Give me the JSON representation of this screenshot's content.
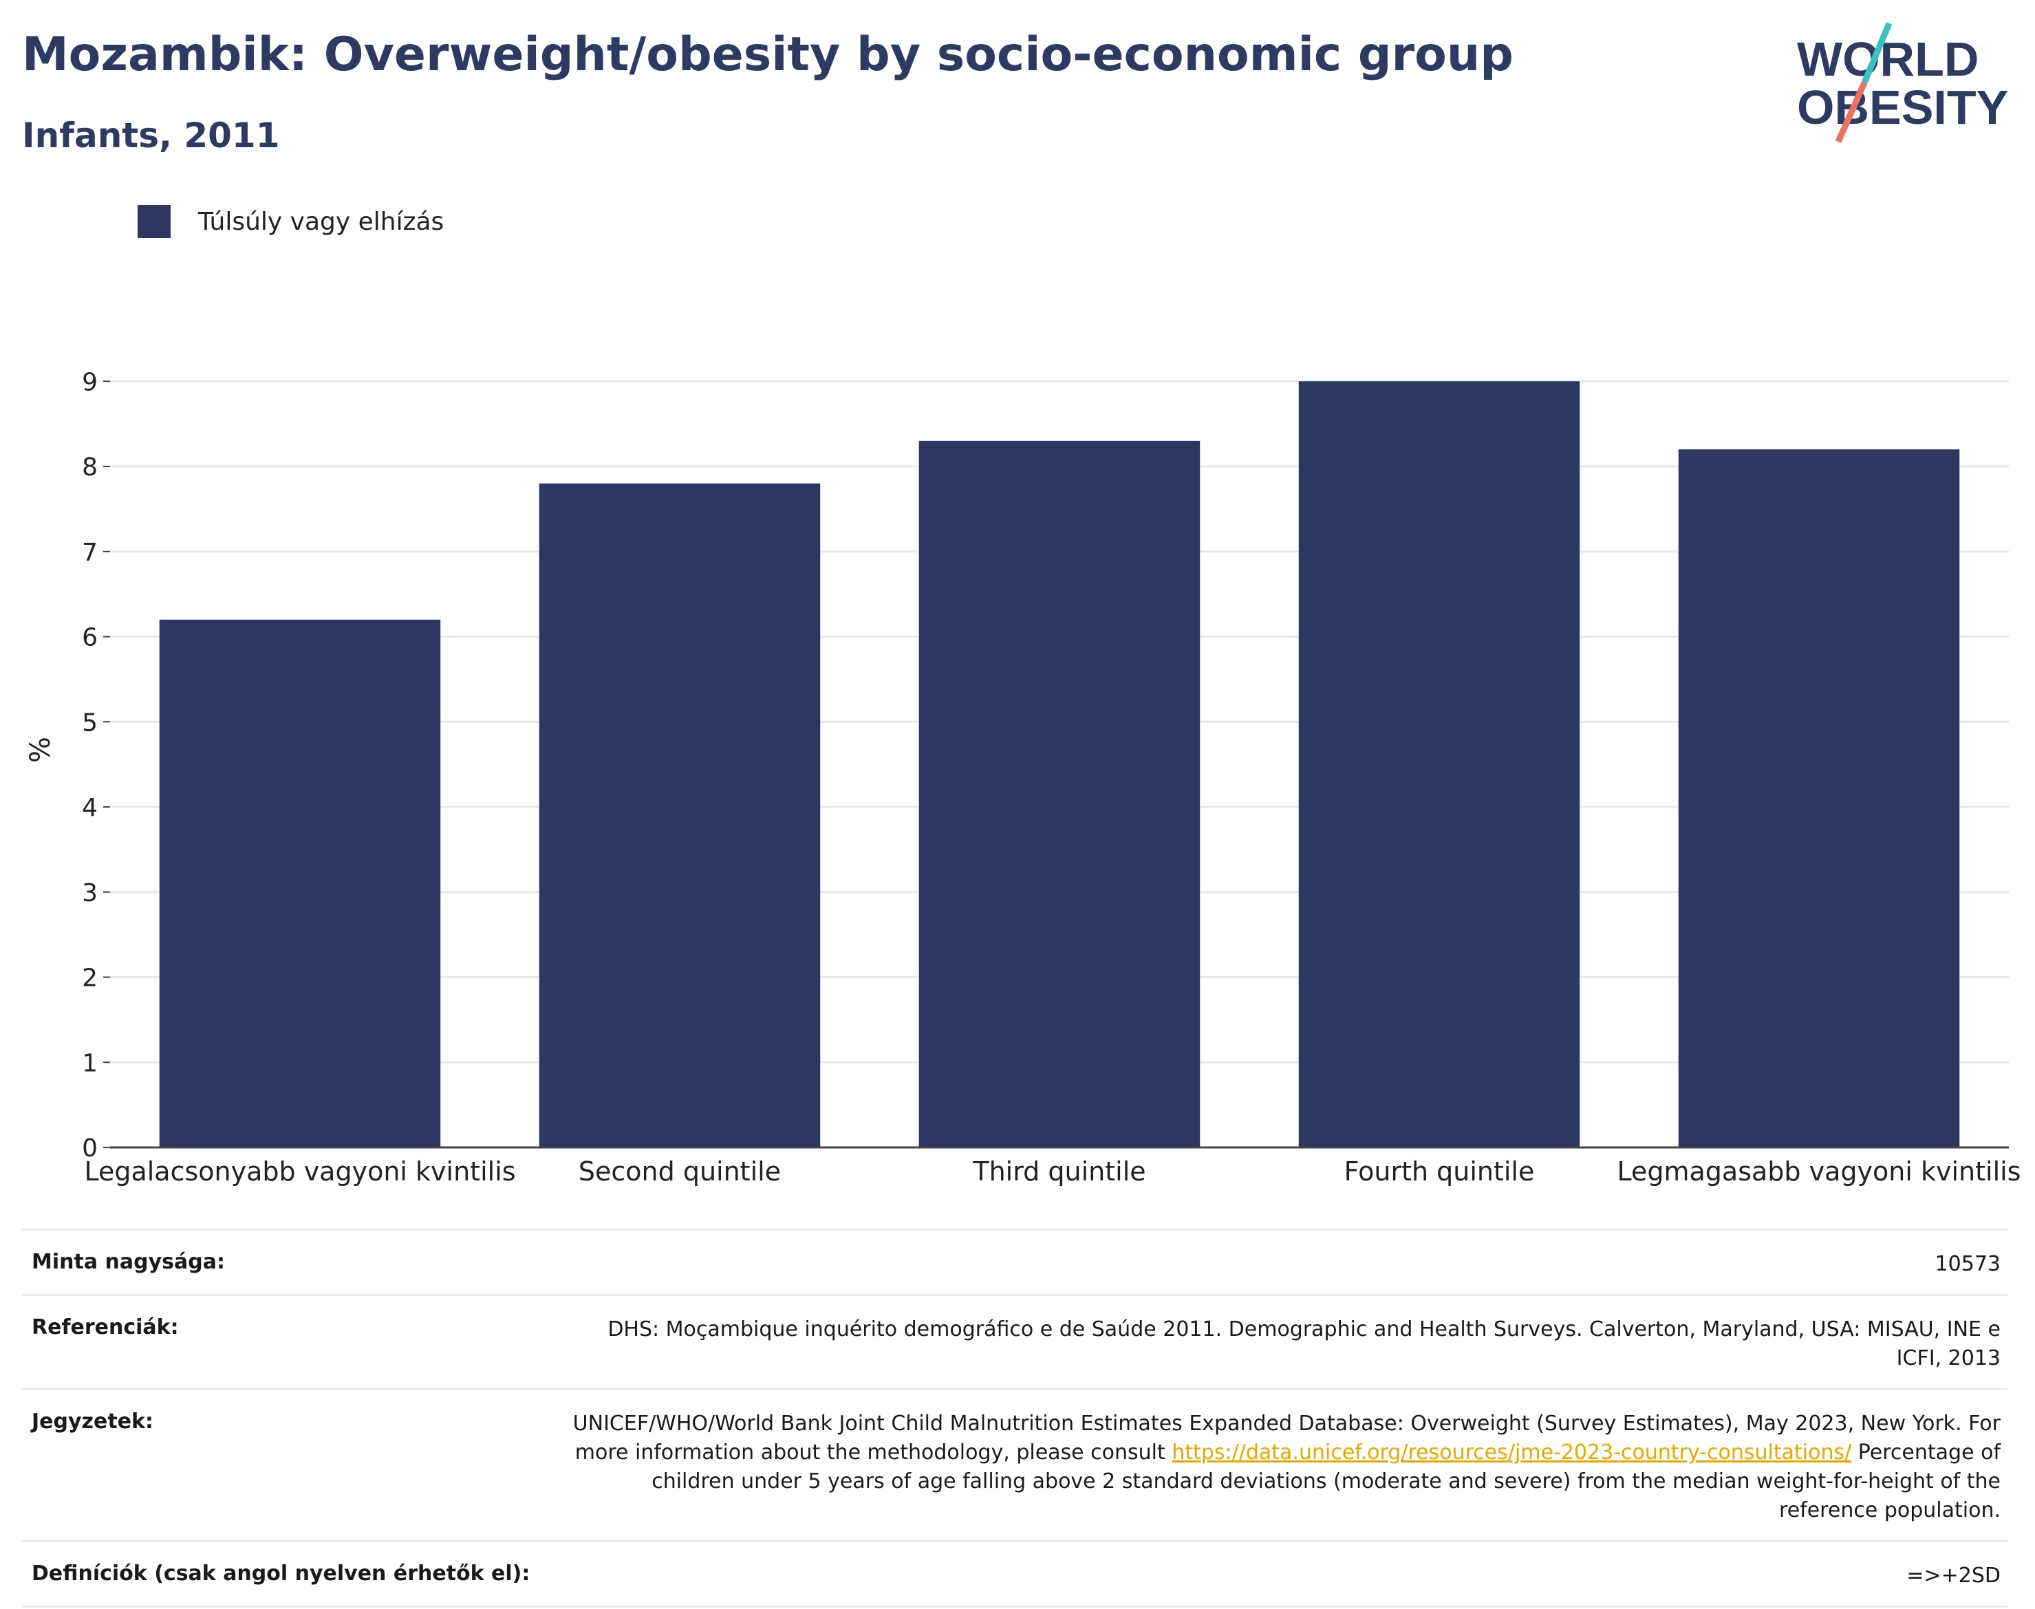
{
  "header": {
    "title": "Mozambik: Overweight/obesity by socio-economic group",
    "subtitle": "Infants, 2011"
  },
  "logo": {
    "line1": "WORLD",
    "line2": "OBESITY"
  },
  "legend": {
    "label": "Túlsúly vagy elhízás"
  },
  "colors": {
    "bar": "#2d3862",
    "title": "#2d3b63",
    "link": "#e8a800",
    "logo_teal": "#3bbfc1",
    "logo_coral": "#e8735f"
  },
  "chart_data": {
    "type": "bar",
    "categories": [
      "Legalacsonyabb vagyoni kvintilis",
      "Second quintile",
      "Third quintile",
      "Fourth quintile",
      "Legmagasabb vagyoni kvintilis"
    ],
    "series": [
      {
        "name": "Túlsúly vagy elhízás",
        "values": [
          6.2,
          7.8,
          8.3,
          9.0,
          8.2
        ]
      }
    ],
    "ylabel": "%",
    "yticks": [
      "0",
      "1",
      "2",
      "3",
      "4",
      "5",
      "6",
      "7",
      "8",
      "9"
    ],
    "ylim": [
      0,
      9.6
    ],
    "grid": true,
    "legend_position": "top-left"
  },
  "info": {
    "sample_label": "Minta nagysága:",
    "sample_value": "10573",
    "refs_label": "Referenciák:",
    "refs_value": "DHS: Moçambique inquérito demográfico e de Saúde 2011. Demographic and Health Surveys. Calverton, Maryland, USA: MISAU, INE e ICFI, 2013",
    "notes_label": "Jegyzetek:",
    "notes_text1": "UNICEF/WHO/World Bank Joint Child Malnutrition Estimates Expanded Database: Overweight (Survey Estimates), May 2023, New York. For more information about the methodology, please consult",
    "notes_link": "https://data.unicef.org/resources/jme-2023-country-consultations/",
    "notes_text2": "Percentage of children under 5 years of age falling above 2 standard deviations (moderate and severe) from the median weight-for-height of the reference population.",
    "defs_label": "Definíciók (csak angol nyelven érhetők el):",
    "defs_value": "=>+2SD"
  }
}
